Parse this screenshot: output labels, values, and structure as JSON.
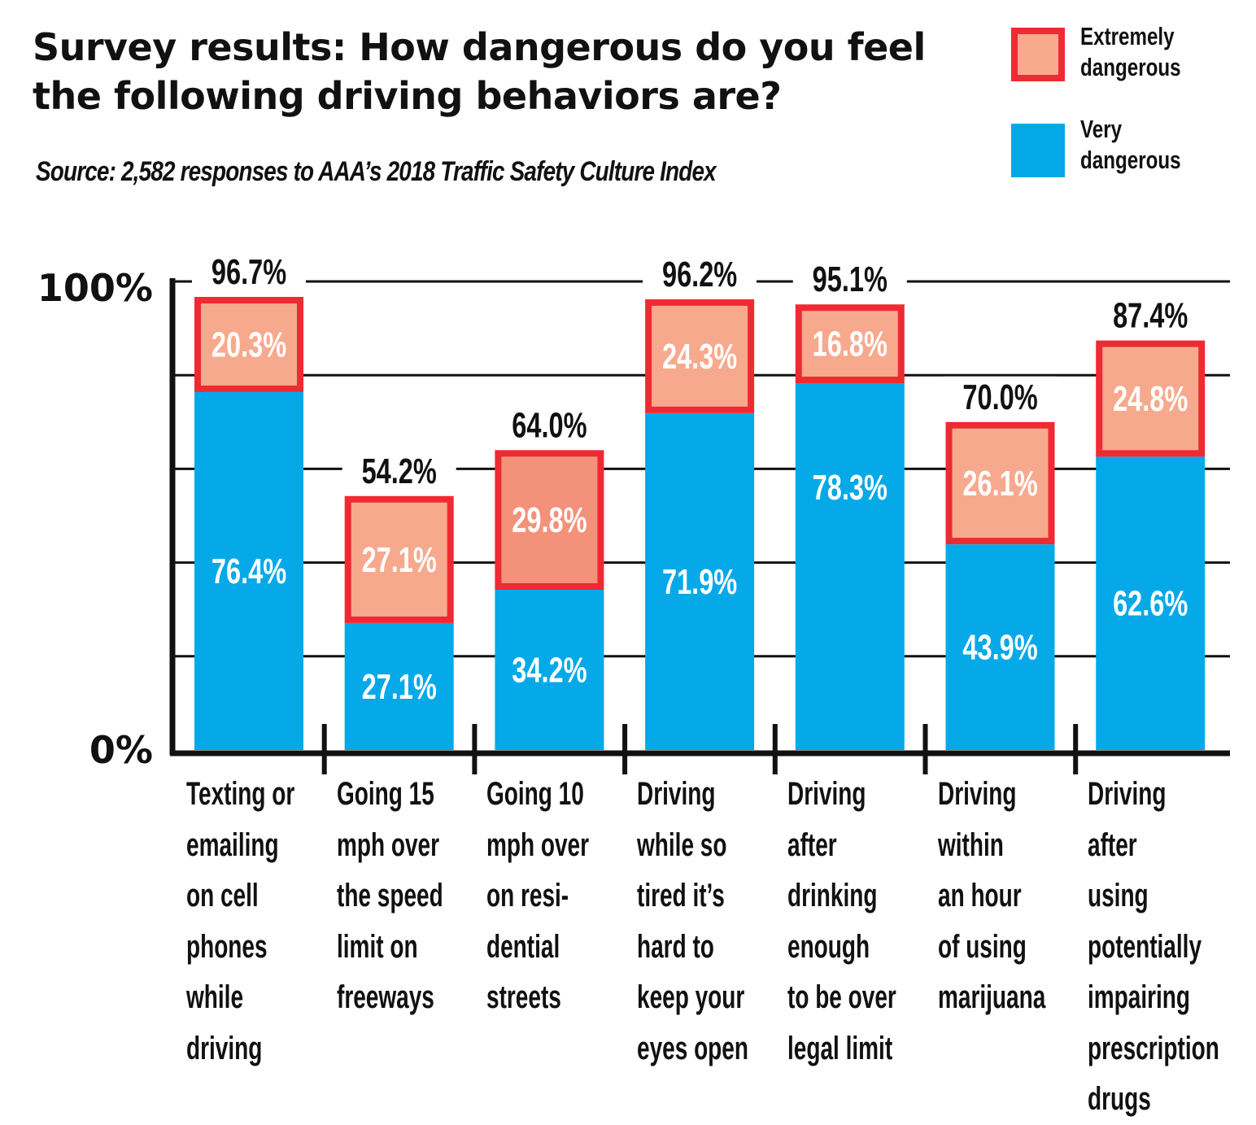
{
  "title": "Survey results: How dangerous do you feel the following driving behaviors are?",
  "subtitle": "Source: 2,582 responses to AAA’s 2018 Traffic Safety Culture Index",
  "legend": {
    "extremely": "Extremely dangerous",
    "very": "Very dangerous"
  },
  "colors": {
    "extremely_fill": "#f7a98e",
    "extremely_fill_alt": "#f4917a",
    "extremely_border": "#ee2a33",
    "very_fill": "#06a9e8",
    "axis": "#111111"
  },
  "chart_data": {
    "type": "bar",
    "stacked": true,
    "title": "Survey results: How dangerous do you feel the following driving behaviors are?",
    "ylim": [
      0,
      100
    ],
    "y_tick_labels": [
      "0%",
      "100%"
    ],
    "grid": true,
    "legend_position": "top-right",
    "categories": [
      "Texting or emailing on cell phones while driving",
      "Going 15 mph over the speed limit on freeways",
      "Going 10 mph over on resi-dential streets",
      "Driving while so tired it’s hard to keep your eyes open",
      "Driving after drinking enough to be over legal limit",
      "Driving within an hour of using marijuana",
      "Driving after using potentially impairing prescription drugs"
    ],
    "category_lines": [
      "Texting or\nemailing\non cell\nphones\nwhile\ndriving",
      "Going 15\nmph over\nthe speed\nlimit on\nfreeways",
      "Going 10\nmph over\non resi-\ndential\nstreets",
      "Driving\nwhile so\ntired it’s\nhard to\nkeep your\neyes open",
      "Driving\nafter\ndrinking\nenough\nto be over\nlegal limit",
      "Driving\nwithin\nan hour\nof using\nmarijuana",
      "Driving\nafter using\npotentially\nimpairing\nprescription\ndrugs"
    ],
    "series": [
      {
        "name": "Very dangerous",
        "values": [
          76.4,
          27.1,
          34.2,
          71.9,
          78.3,
          43.9,
          62.6
        ],
        "labels": [
          "76.4%",
          "27.1%",
          "34.2%",
          "71.9%",
          "78.3%",
          "43.9%",
          "62.6%"
        ]
      },
      {
        "name": "Extremely dangerous",
        "values": [
          20.3,
          27.1,
          29.8,
          24.3,
          16.8,
          26.1,
          24.8
        ],
        "labels": [
          "20.3%",
          "27.1%",
          "29.8%",
          "24.3%",
          "16.8%",
          "26.1%",
          "24.8%"
        ]
      }
    ],
    "totals": [
      96.7,
      54.2,
      64.0,
      96.2,
      95.1,
      70.0,
      87.4
    ],
    "total_labels": [
      "96.7%",
      "54.2%",
      "64.0%",
      "96.2%",
      "95.1%",
      "70.0%",
      "87.4%"
    ]
  }
}
